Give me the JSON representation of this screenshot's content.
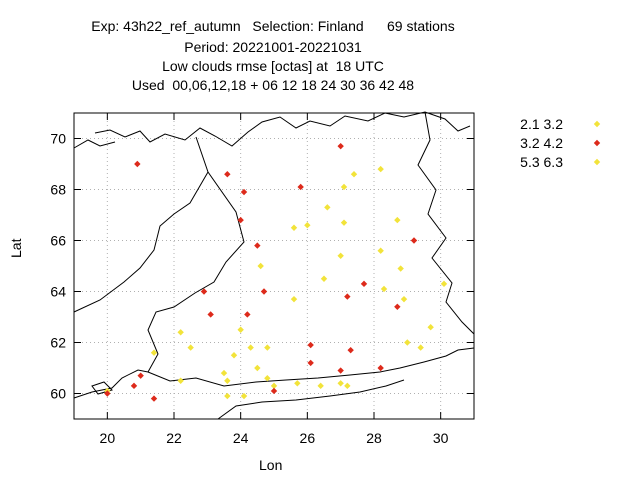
{
  "chart_data": {
    "type": "scatter",
    "title_lines": [
      "Exp: 43h22_ref_autumn   Selection: Finland      69 stations",
      "Period: 20221001-20221031",
      "Low clouds rmse [octas] at  18 UTC",
      "Used  00,06,12,18 + 06 12 18 24 30 36 42 48"
    ],
    "xlabel": "Lon",
    "ylabel": "Lat",
    "xlim": [
      19,
      31
    ],
    "ylim": [
      59,
      71
    ],
    "xticks": [
      20,
      22,
      24,
      26,
      28,
      30
    ],
    "yticks": [
      60,
      62,
      64,
      66,
      68,
      70
    ],
    "grid": true,
    "legend_position": "outside-right",
    "series": [
      {
        "name": "2.1 3.2",
        "color": "#f2e33a",
        "points": [
          [
            27.4,
            68.6
          ],
          [
            28.2,
            68.8
          ],
          [
            27.1,
            68.1
          ],
          [
            26.6,
            67.3
          ],
          [
            25.6,
            66.5
          ],
          [
            26.0,
            66.6
          ],
          [
            27.1,
            66.7
          ],
          [
            28.7,
            66.8
          ],
          [
            24.6,
            65.0
          ],
          [
            27.0,
            65.4
          ],
          [
            28.2,
            65.6
          ],
          [
            28.8,
            64.9
          ],
          [
            26.5,
            64.5
          ],
          [
            28.3,
            64.1
          ],
          [
            25.6,
            63.7
          ],
          [
            28.9,
            63.7
          ],
          [
            30.1,
            64.3
          ],
          [
            22.2,
            62.4
          ],
          [
            22.5,
            61.8
          ],
          [
            24.0,
            62.5
          ],
          [
            29.7,
            62.6
          ],
          [
            29.0,
            62.0
          ],
          [
            24.3,
            61.8
          ],
          [
            24.8,
            61.8
          ],
          [
            23.8,
            61.5
          ],
          [
            23.5,
            60.8
          ],
          [
            22.2,
            60.5
          ],
          [
            23.6,
            60.5
          ],
          [
            24.5,
            61.0
          ],
          [
            24.8,
            60.6
          ],
          [
            25.0,
            60.3
          ],
          [
            25.7,
            60.4
          ],
          [
            26.4,
            60.3
          ],
          [
            27.0,
            60.4
          ],
          [
            27.2,
            60.3
          ],
          [
            29.4,
            61.8
          ],
          [
            20.0,
            60.1
          ],
          [
            23.6,
            59.9
          ],
          [
            24.1,
            59.9
          ],
          [
            21.4,
            61.6
          ]
        ]
      },
      {
        "name": "3.2 4.2",
        "color": "#dd2a1b",
        "points": [
          [
            20.9,
            69.0
          ],
          [
            27.0,
            69.7
          ],
          [
            23.6,
            68.6
          ],
          [
            24.1,
            67.9
          ],
          [
            25.8,
            68.1
          ],
          [
            24.0,
            66.8
          ],
          [
            29.2,
            66.0
          ],
          [
            24.5,
            65.8
          ],
          [
            24.7,
            64.0
          ],
          [
            22.9,
            64.0
          ],
          [
            27.7,
            64.3
          ],
          [
            27.2,
            63.8
          ],
          [
            28.7,
            63.4
          ],
          [
            23.1,
            63.1
          ],
          [
            24.2,
            63.1
          ],
          [
            26.1,
            61.9
          ],
          [
            27.3,
            61.7
          ],
          [
            26.1,
            61.2
          ],
          [
            28.2,
            61.0
          ],
          [
            27.0,
            60.9
          ],
          [
            21.0,
            60.7
          ],
          [
            20.8,
            60.3
          ],
          [
            20.0,
            60.0
          ],
          [
            25.0,
            60.1
          ],
          [
            21.4,
            59.8
          ]
        ]
      },
      {
        "name": "5.3 6.3",
        "color": "#f2e33a",
        "points": []
      }
    ]
  }
}
